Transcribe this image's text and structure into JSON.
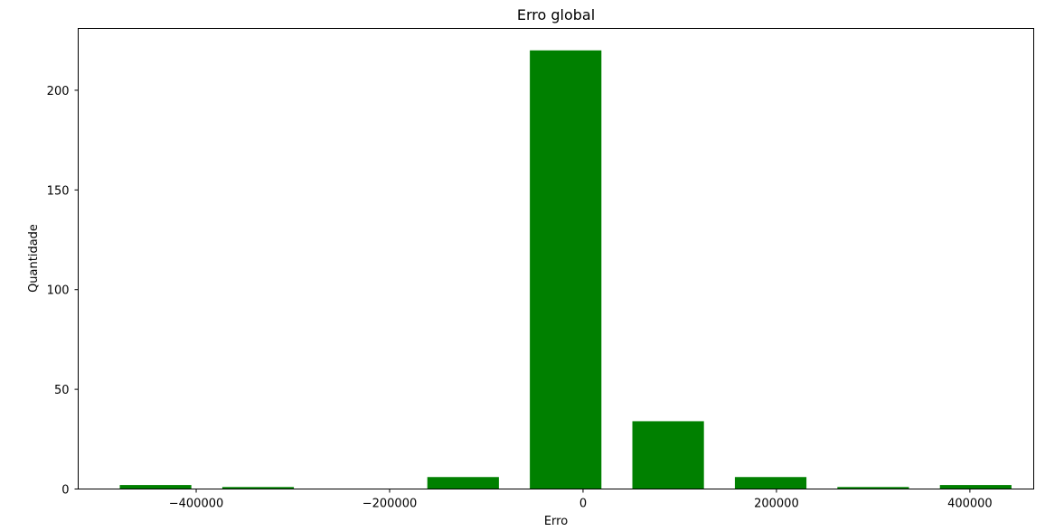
{
  "chart_data": {
    "type": "bar",
    "title": "Erro global",
    "xlabel": "Erro",
    "ylabel": "Quantidade",
    "xlim": [
      -522000,
      466000
    ],
    "ylim": [
      0,
      231
    ],
    "bar_width": 74000,
    "bar_color": "#008000",
    "x": [
      -442000,
      -336000,
      -230000,
      -124000,
      -18000,
      88000,
      194000,
      300000,
      406000
    ],
    "values": [
      2,
      1,
      0,
      6,
      220,
      34,
      6,
      1,
      2
    ],
    "xticks": [
      -400000,
      -200000,
      0,
      200000,
      400000
    ],
    "xtick_labels": [
      "−400000",
      "−200000",
      "0",
      "200000",
      "400000"
    ],
    "yticks": [
      0,
      50,
      100,
      150,
      200
    ],
    "ytick_labels": [
      "0",
      "50",
      "100",
      "150",
      "200"
    ]
  }
}
